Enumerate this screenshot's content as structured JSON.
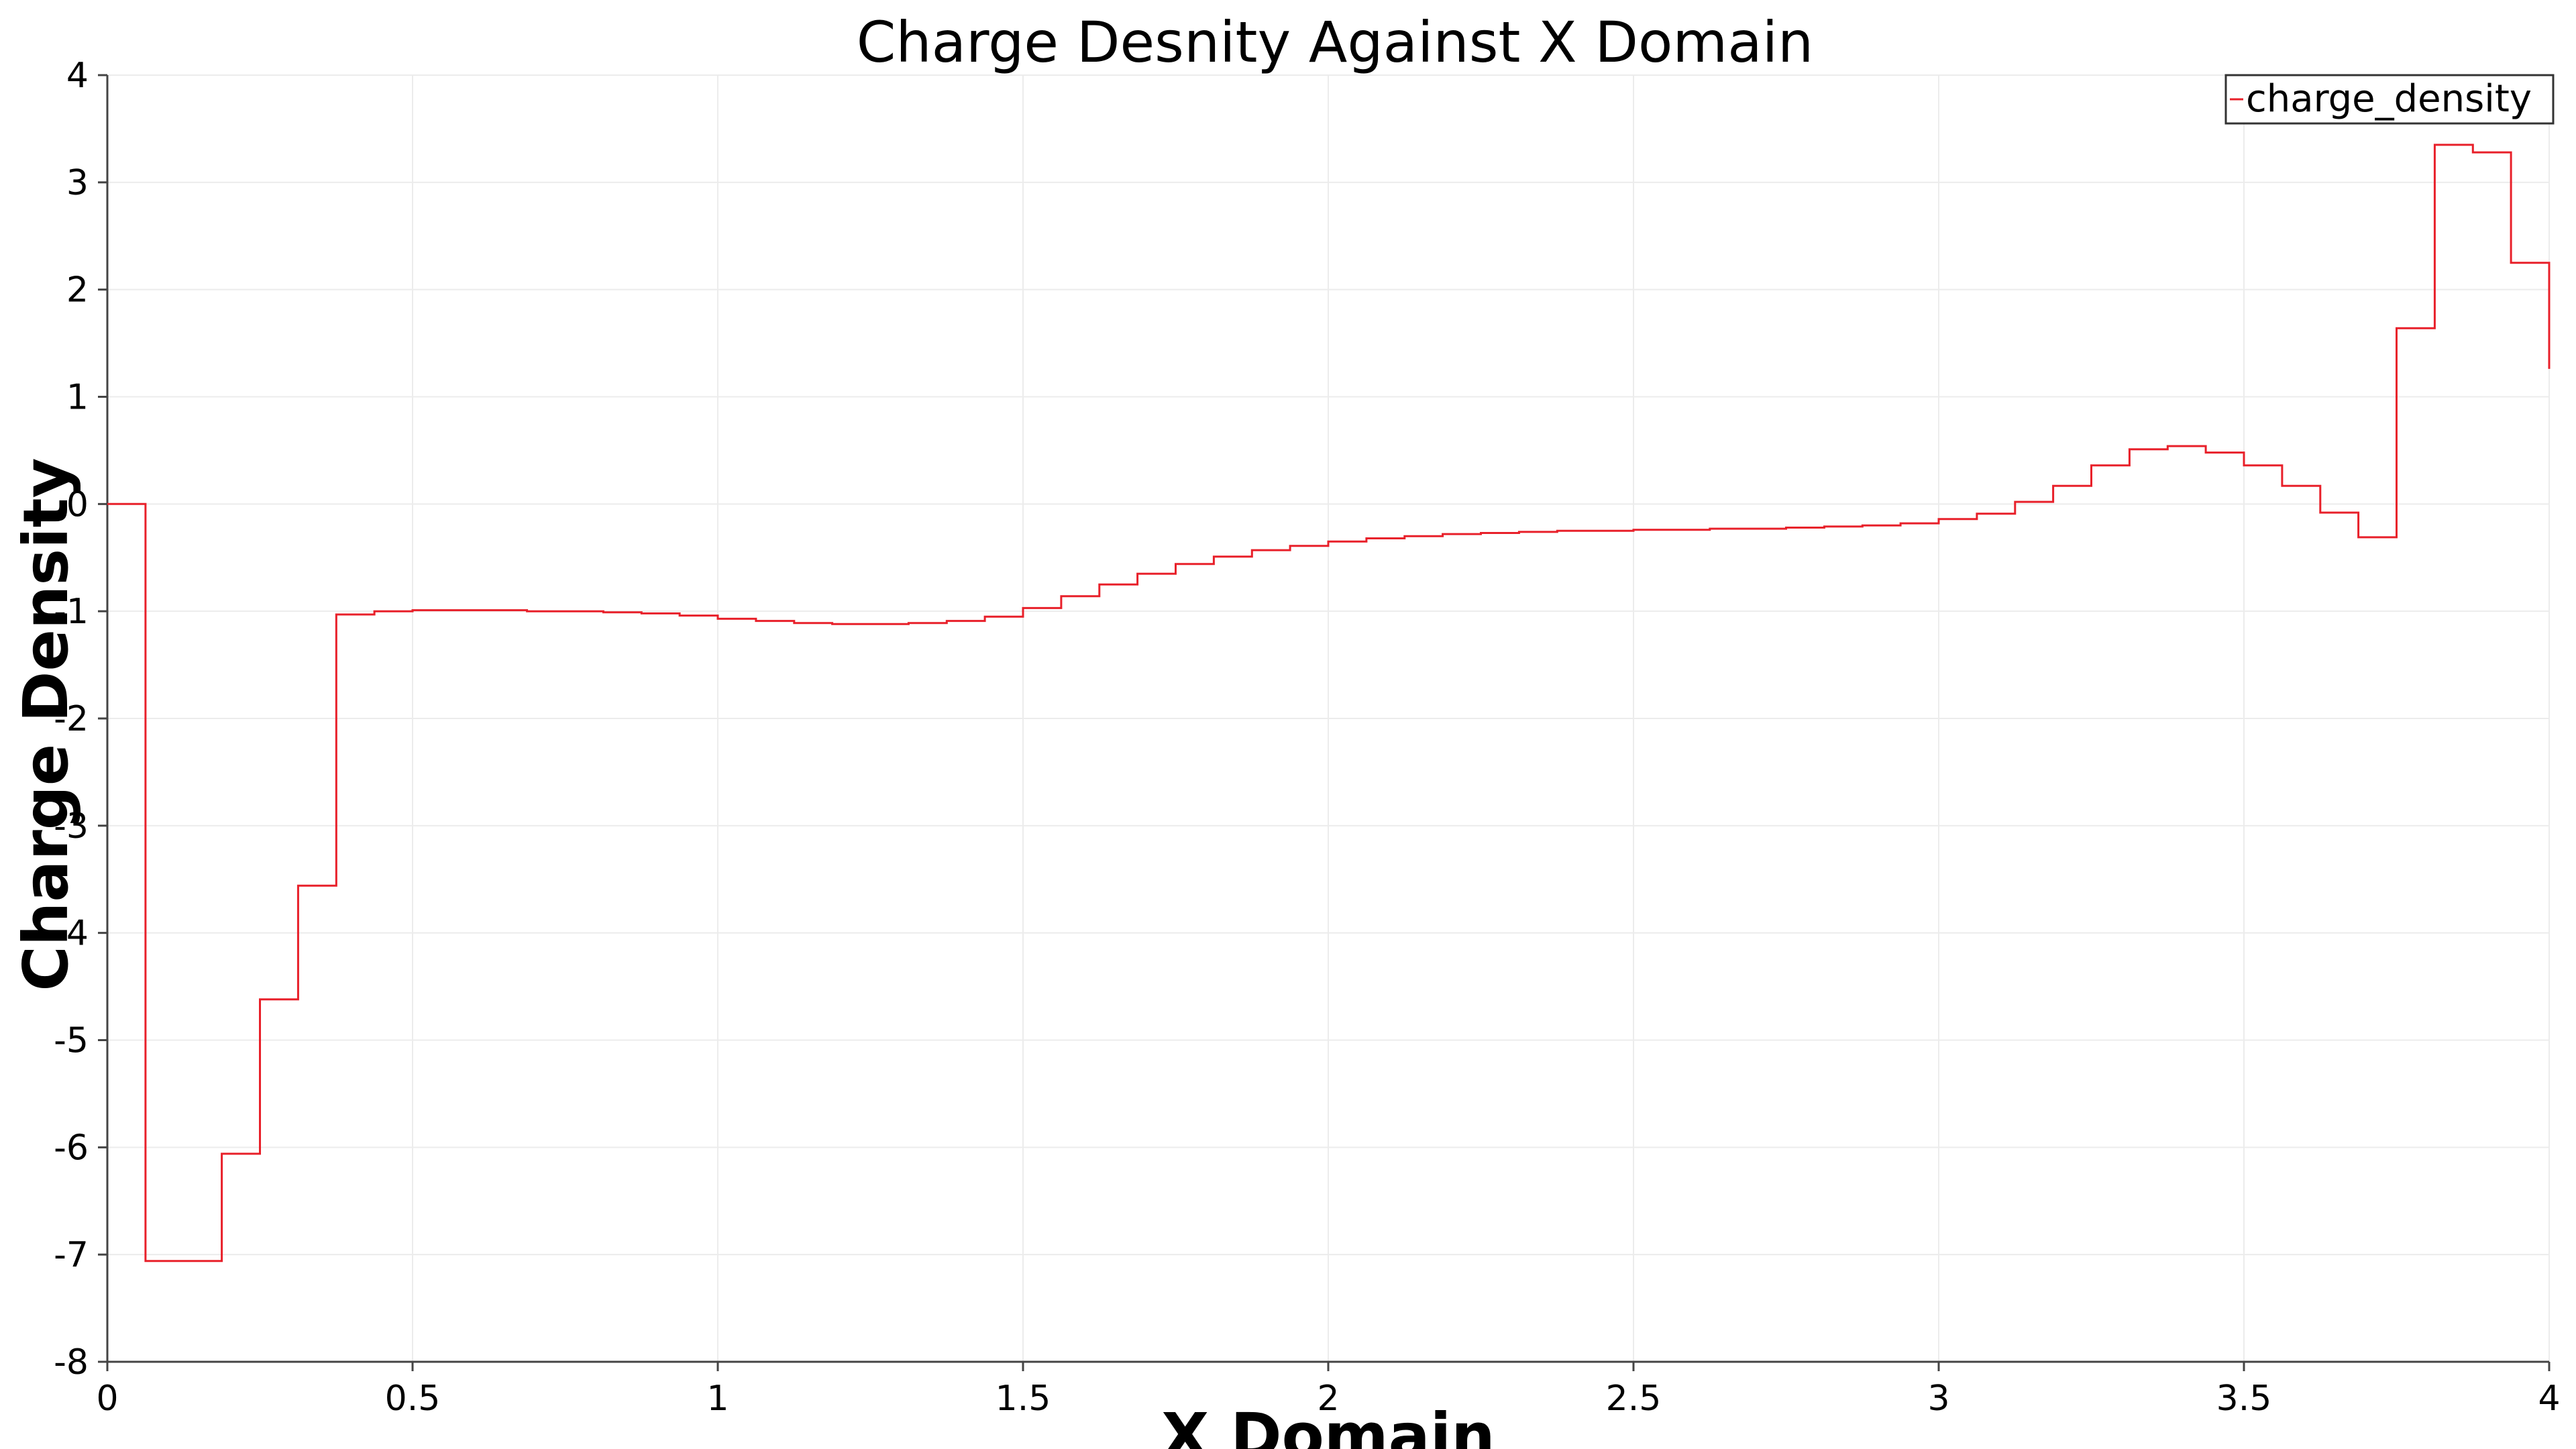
{
  "chart_data": {
    "type": "line",
    "title": "Charge Desnity Against X Domain",
    "xlabel": "X Domain",
    "ylabel": "Charge Density",
    "xlim": [
      0,
      4
    ],
    "ylim": [
      -8,
      4
    ],
    "xticks": [
      "0",
      "0.5",
      "1",
      "1.5",
      "2",
      "2.5",
      "3",
      "3.5",
      "4"
    ],
    "yticks": [
      "-8",
      "-7",
      "-6",
      "-5",
      "-4",
      "-3",
      "-2",
      "-1",
      "0",
      "1",
      "2",
      "3",
      "4"
    ],
    "grid": true,
    "legend_position": "top-right",
    "series": [
      {
        "name": "charge_density",
        "color": "#e8202a",
        "step": true,
        "x": [
          0.0,
          0.0625,
          0.125,
          0.1875,
          0.25,
          0.3125,
          0.375,
          0.4375,
          0.5,
          0.5625,
          0.625,
          0.6875,
          0.75,
          0.8125,
          0.875,
          0.9375,
          1.0,
          1.0625,
          1.125,
          1.1875,
          1.25,
          1.3125,
          1.375,
          1.4375,
          1.5,
          1.5625,
          1.625,
          1.6875,
          1.75,
          1.8125,
          1.875,
          1.9375,
          2.0,
          2.0625,
          2.125,
          2.1875,
          2.25,
          2.3125,
          2.375,
          2.4375,
          2.5,
          2.5625,
          2.625,
          2.6875,
          2.75,
          2.8125,
          2.875,
          2.9375,
          3.0,
          3.0625,
          3.125,
          3.1875,
          3.25,
          3.3125,
          3.375,
          3.4375,
          3.5,
          3.5625,
          3.625,
          3.6875,
          3.75,
          3.8125,
          3.875,
          3.9375,
          4.0
        ],
        "y": [
          0.0,
          -7.06,
          -7.06,
          -6.06,
          -4.62,
          -3.56,
          -1.03,
          -1.0,
          -0.99,
          -0.99,
          -0.99,
          -1.0,
          -1.0,
          -1.01,
          -1.02,
          -1.04,
          -1.07,
          -1.09,
          -1.11,
          -1.12,
          -1.12,
          -1.11,
          -1.09,
          -1.05,
          -0.97,
          -0.86,
          -0.75,
          -0.65,
          -0.56,
          -0.49,
          -0.43,
          -0.39,
          -0.35,
          -0.32,
          -0.3,
          -0.28,
          -0.27,
          -0.26,
          -0.25,
          -0.25,
          -0.24,
          -0.24,
          -0.23,
          -0.23,
          -0.22,
          -0.21,
          -0.2,
          -0.18,
          -0.14,
          -0.09,
          0.02,
          0.17,
          0.36,
          0.51,
          0.54,
          0.48,
          0.36,
          0.17,
          -0.08,
          -0.31,
          1.64,
          3.35,
          3.28,
          2.25,
          1.26
        ]
      }
    ]
  }
}
